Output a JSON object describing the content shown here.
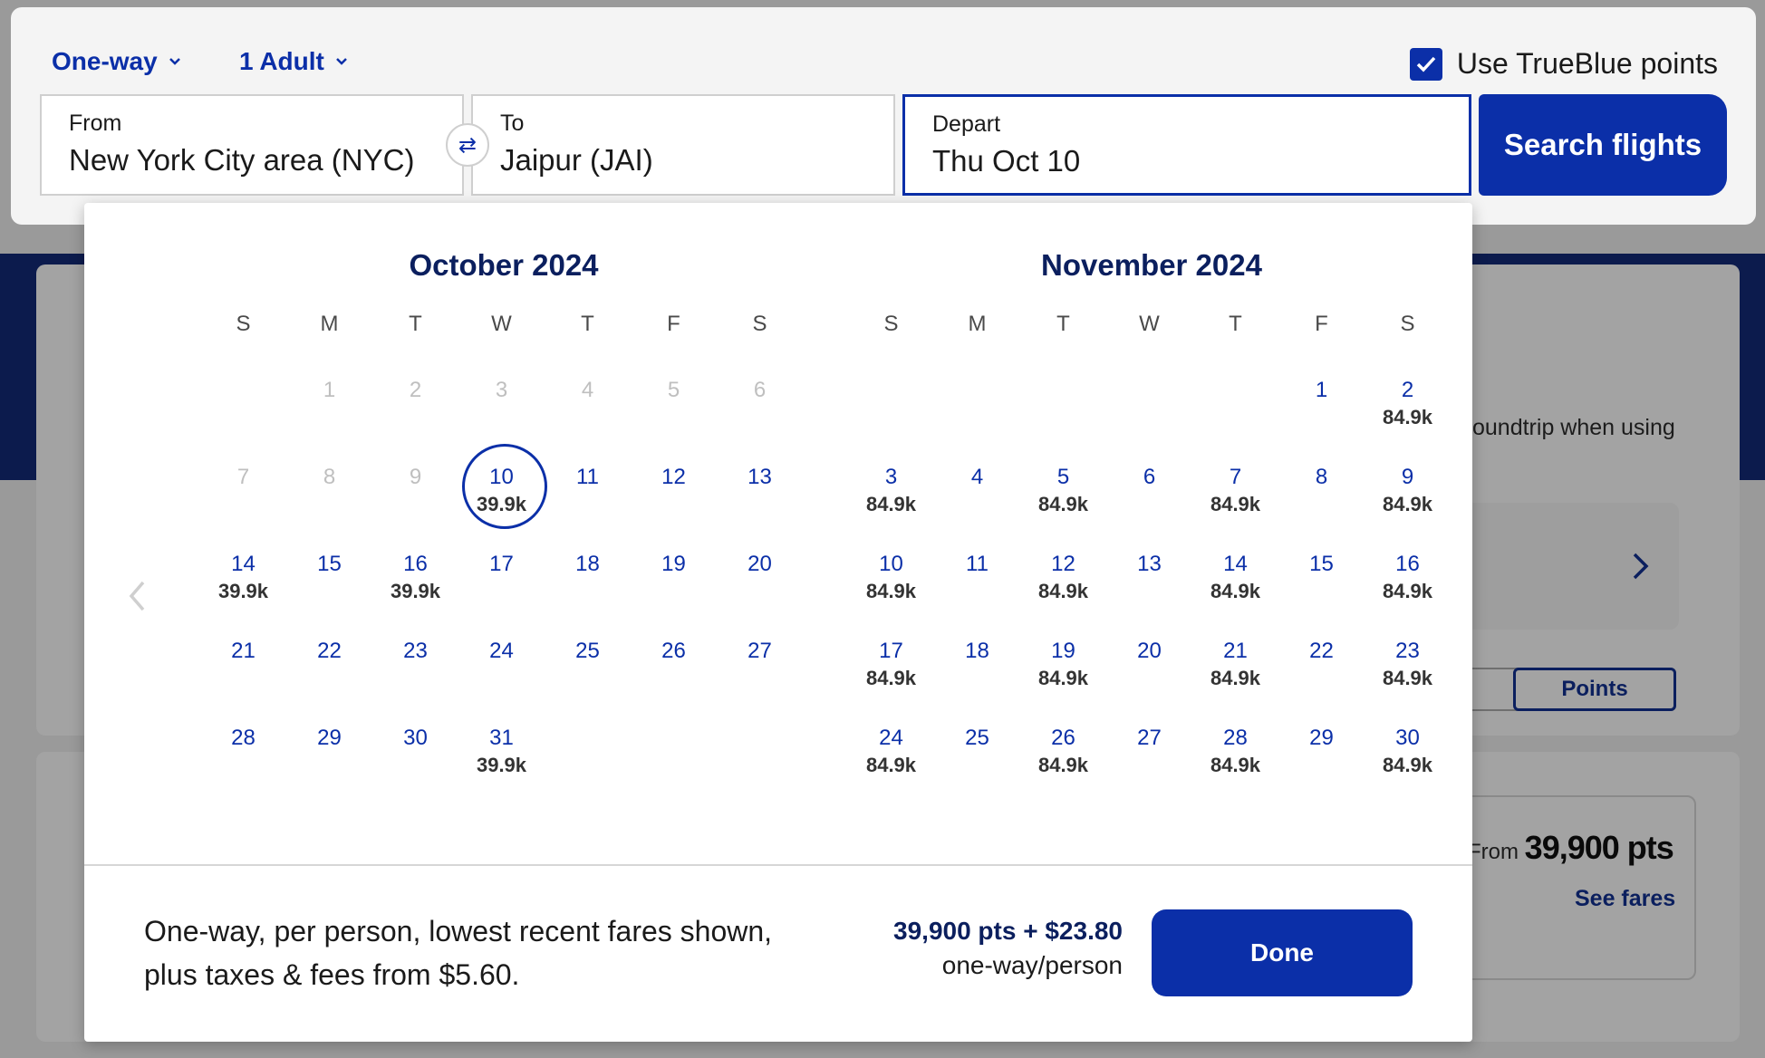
{
  "search": {
    "trip_type": "One-way",
    "passengers": "1 Adult",
    "trueblue_label": "Use TrueBlue points",
    "trueblue_checked": true,
    "from_label": "From",
    "from_value": "New York City area (NYC)",
    "to_label": "To",
    "to_value": "Jaipur (JAI)",
    "depart_label": "Depart",
    "depart_value": "Thu Oct 10",
    "search_button": "Search flights"
  },
  "background": {
    "promo_text": "oundtrip when using",
    "toggle_points": "Points",
    "from_prefix": "From",
    "from_points": "39,900 pts",
    "see_fares": "See fares"
  },
  "calendar": {
    "weekdays": [
      "S",
      "M",
      "T",
      "W",
      "T",
      "F",
      "S"
    ],
    "months": [
      {
        "title": "October 2024",
        "start_offset": 1,
        "days": [
          {
            "d": "1",
            "disabled": true
          },
          {
            "d": "2",
            "disabled": true
          },
          {
            "d": "3",
            "disabled": true
          },
          {
            "d": "4",
            "disabled": true
          },
          {
            "d": "5",
            "disabled": true
          },
          {
            "d": "6",
            "disabled": true
          },
          {
            "d": "7",
            "disabled": true
          },
          {
            "d": "8",
            "disabled": true
          },
          {
            "d": "9",
            "disabled": true
          },
          {
            "d": "10",
            "price": "39.9k",
            "selected": true
          },
          {
            "d": "11"
          },
          {
            "d": "12"
          },
          {
            "d": "13"
          },
          {
            "d": "14",
            "price": "39.9k"
          },
          {
            "d": "15"
          },
          {
            "d": "16",
            "price": "39.9k"
          },
          {
            "d": "17"
          },
          {
            "d": "18"
          },
          {
            "d": "19"
          },
          {
            "d": "20"
          },
          {
            "d": "21"
          },
          {
            "d": "22"
          },
          {
            "d": "23"
          },
          {
            "d": "24"
          },
          {
            "d": "25"
          },
          {
            "d": "26"
          },
          {
            "d": "27"
          },
          {
            "d": "28"
          },
          {
            "d": "29"
          },
          {
            "d": "30"
          },
          {
            "d": "31",
            "price": "39.9k"
          }
        ]
      },
      {
        "title": "November 2024",
        "start_offset": 5,
        "days": [
          {
            "d": "1"
          },
          {
            "d": "2",
            "price": "84.9k"
          },
          {
            "d": "3",
            "price": "84.9k"
          },
          {
            "d": "4"
          },
          {
            "d": "5",
            "price": "84.9k"
          },
          {
            "d": "6"
          },
          {
            "d": "7",
            "price": "84.9k"
          },
          {
            "d": "8"
          },
          {
            "d": "9",
            "price": "84.9k"
          },
          {
            "d": "10",
            "price": "84.9k"
          },
          {
            "d": "11"
          },
          {
            "d": "12",
            "price": "84.9k"
          },
          {
            "d": "13"
          },
          {
            "d": "14",
            "price": "84.9k"
          },
          {
            "d": "15"
          },
          {
            "d": "16",
            "price": "84.9k"
          },
          {
            "d": "17",
            "price": "84.9k"
          },
          {
            "d": "18"
          },
          {
            "d": "19",
            "price": "84.9k"
          },
          {
            "d": "20"
          },
          {
            "d": "21",
            "price": "84.9k"
          },
          {
            "d": "22"
          },
          {
            "d": "23",
            "price": "84.9k"
          },
          {
            "d": "24",
            "price": "84.9k"
          },
          {
            "d": "25"
          },
          {
            "d": "26",
            "price": "84.9k"
          },
          {
            "d": "27"
          },
          {
            "d": "28",
            "price": "84.9k"
          },
          {
            "d": "29"
          },
          {
            "d": "30",
            "price": "84.9k"
          }
        ]
      }
    ],
    "disclaimer": "One-way, per person, lowest recent fares shown, plus taxes & fees from $5.60.",
    "summary_price": "39,900 pts + $23.80",
    "summary_sub": "one-way/person",
    "done_button": "Done"
  },
  "colors": {
    "accent": "#0b2fa8",
    "navy": "#0b1f5e"
  }
}
